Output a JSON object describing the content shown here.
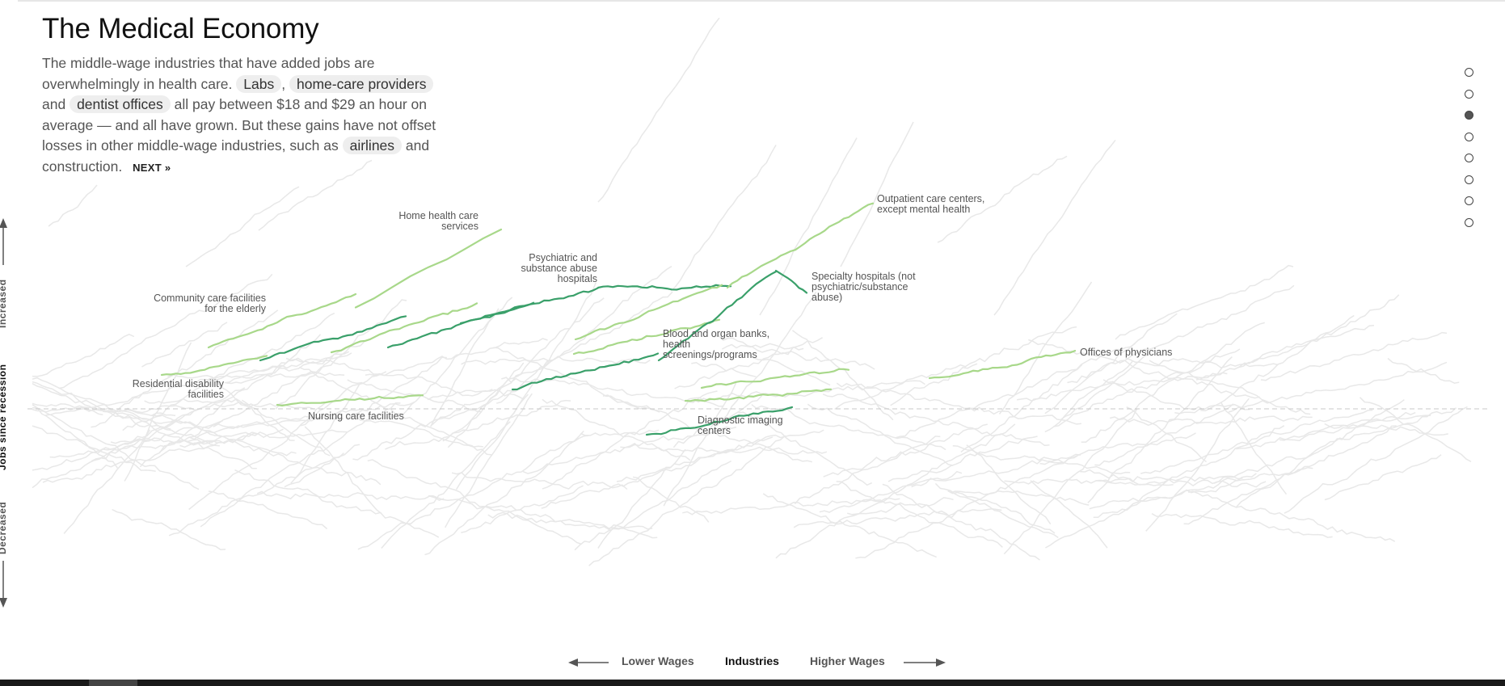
{
  "intro": {
    "title": "The Medical Economy",
    "text_1": "The middle-wage industries that have added jobs are overwhelmingly in health care.",
    "chip_labs": "Labs",
    "sep_1": ",",
    "chip_homecare": "home-care providers",
    "text_2": "and",
    "chip_dentist": "dentist offices",
    "text_3": "all pay between $18 and $29 an hour on average — and all have grown. But these gains have not offset losses in other middle-wage industries, such as",
    "chip_airlines": "airlines",
    "text_4": "and construction.",
    "next_label": "NEXT »"
  },
  "y_axis": {
    "increased": "Increased",
    "title": "Jobs since recession",
    "decreased": "Decreased"
  },
  "x_axis": {
    "lower": "Lower Wages",
    "title": "Industries",
    "higher": "Higher Wages"
  },
  "nav": {
    "dots": 8,
    "active": 2
  },
  "colors": {
    "light_green": "#a8d88a",
    "dark_green": "#3aa06a",
    "background_lines": "#e8e8e8",
    "baseline": "#c8c8c8"
  },
  "chart_data": {
    "type": "line",
    "highlighted_series": [
      {
        "name": "Home health care services"
      },
      {
        "name": "Psychiatric and substance abuse hospitals"
      },
      {
        "name": "Community care facilities for the elderly"
      },
      {
        "name": "Residential disability facilities"
      },
      {
        "name": "Nursing care facilities"
      },
      {
        "name": "Outpatient care centers, except mental health"
      },
      {
        "name": "Specialty hospitals (not psychiatric/substance abuse)"
      },
      {
        "name": "Blood and organ banks, health screenings/programs"
      },
      {
        "name": "Diagnostic imaging centers"
      },
      {
        "name": "Offices of physicians"
      }
    ]
  }
}
